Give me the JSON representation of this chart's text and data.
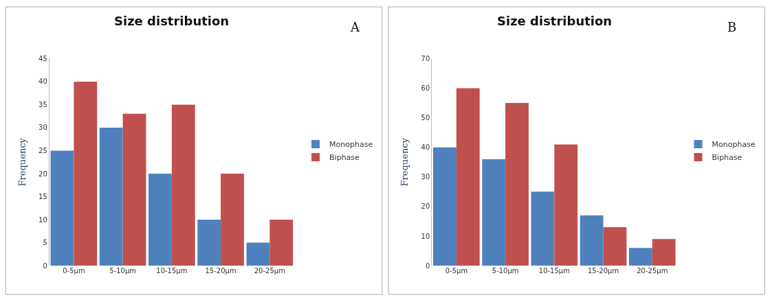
{
  "chart_data": [
    {
      "type": "bar",
      "title": "Size distribution",
      "ylabel": "Frequency",
      "annotations": [
        "A"
      ],
      "categories": [
        "0-5µm",
        "5-10µm",
        "10-15µm",
        "15-20µm",
        "20-25µm"
      ],
      "series": [
        {
          "name": "Monophase",
          "color": "#4f81bd",
          "values": [
            25,
            30,
            20,
            10,
            5
          ]
        },
        {
          "name": "Biphase",
          "color": "#c0504d",
          "values": [
            40,
            33,
            35,
            20,
            10
          ]
        }
      ],
      "ylim": [
        0,
        45
      ],
      "yticks": [
        0,
        5,
        10,
        15,
        20,
        25,
        30,
        35,
        40,
        45
      ],
      "legend": "right"
    },
    {
      "type": "bar",
      "title": "Size distribution",
      "ylabel": "Frequency",
      "annotations": [
        "B"
      ],
      "categories": [
        "0-5µm",
        "5-10µm",
        "10-15µm",
        "15-20µm",
        "20-25µm"
      ],
      "series": [
        {
          "name": "Monophase",
          "color": "#4f81bd",
          "values": [
            40,
            36,
            25,
            17,
            6
          ]
        },
        {
          "name": "Biphase",
          "color": "#c0504d",
          "values": [
            60,
            55,
            41,
            13,
            9
          ]
        }
      ],
      "ylim": [
        0,
        70
      ],
      "yticks": [
        0,
        10,
        20,
        30,
        40,
        50,
        60,
        70
      ],
      "legend": "right"
    }
  ]
}
